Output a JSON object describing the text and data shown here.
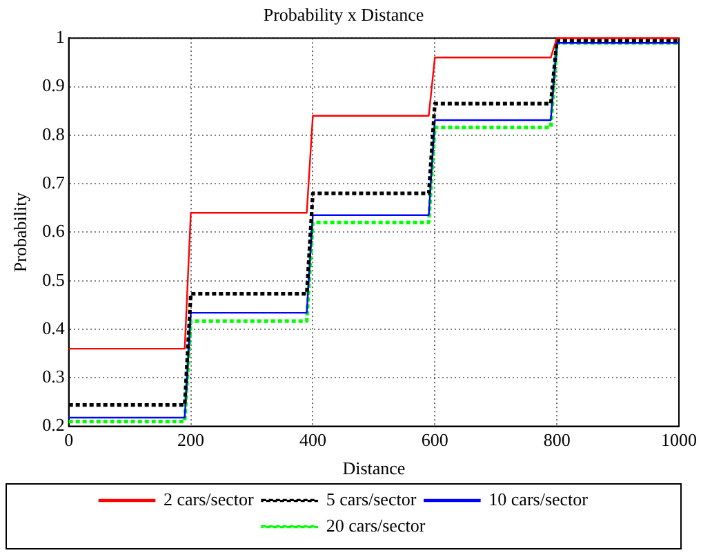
{
  "chart_data": {
    "type": "line",
    "title": "Probability x Distance",
    "xlabel": "Distance",
    "ylabel": "Probability",
    "xlim": [
      0,
      1000
    ],
    "xticks": [
      0,
      200,
      400,
      600,
      800,
      1000
    ],
    "ylim": [
      0.2,
      1
    ],
    "yticks": [
      0.2,
      0.3,
      0.4,
      0.5,
      0.6,
      0.7,
      0.8,
      0.9,
      1
    ],
    "grid": true,
    "legend": "bottom",
    "marker": "none",
    "series": [
      {
        "name": "2 cars/sector",
        "color": "#ff0000",
        "line_style": "solid",
        "x": [
          0,
          190,
          200,
          390,
          400,
          590,
          600,
          790,
          800,
          1000
        ],
        "values": [
          0.36,
          0.36,
          0.64,
          0.64,
          0.84,
          0.84,
          0.96,
          0.96,
          1,
          1
        ]
      },
      {
        "name": "5 cars/sector",
        "color": "#000000",
        "line_style": "dashed",
        "x": [
          0,
          190,
          200,
          390,
          400,
          590,
          600,
          790,
          800,
          1000
        ],
        "values": [
          0.244,
          0.244,
          0.473,
          0.473,
          0.68,
          0.68,
          0.865,
          0.865,
          0.995,
          0.995
        ]
      },
      {
        "name": "10 cars/sector",
        "color": "#0000ff",
        "line_style": "solid",
        "x": [
          0,
          190,
          200,
          390,
          400,
          590,
          600,
          790,
          800,
          1000
        ],
        "values": [
          0.218,
          0.218,
          0.434,
          0.434,
          0.635,
          0.635,
          0.831,
          0.831,
          0.99,
          0.99
        ]
      },
      {
        "name": "20 cars/sector",
        "color": "#00ff00",
        "line_style": "dashed",
        "x": [
          0,
          190,
          200,
          390,
          400,
          590,
          600,
          790,
          800,
          1000
        ],
        "values": [
          0.21,
          0.21,
          0.417,
          0.417,
          0.62,
          0.62,
          0.816,
          0.816,
          0.99,
          0.99
        ]
      }
    ]
  }
}
